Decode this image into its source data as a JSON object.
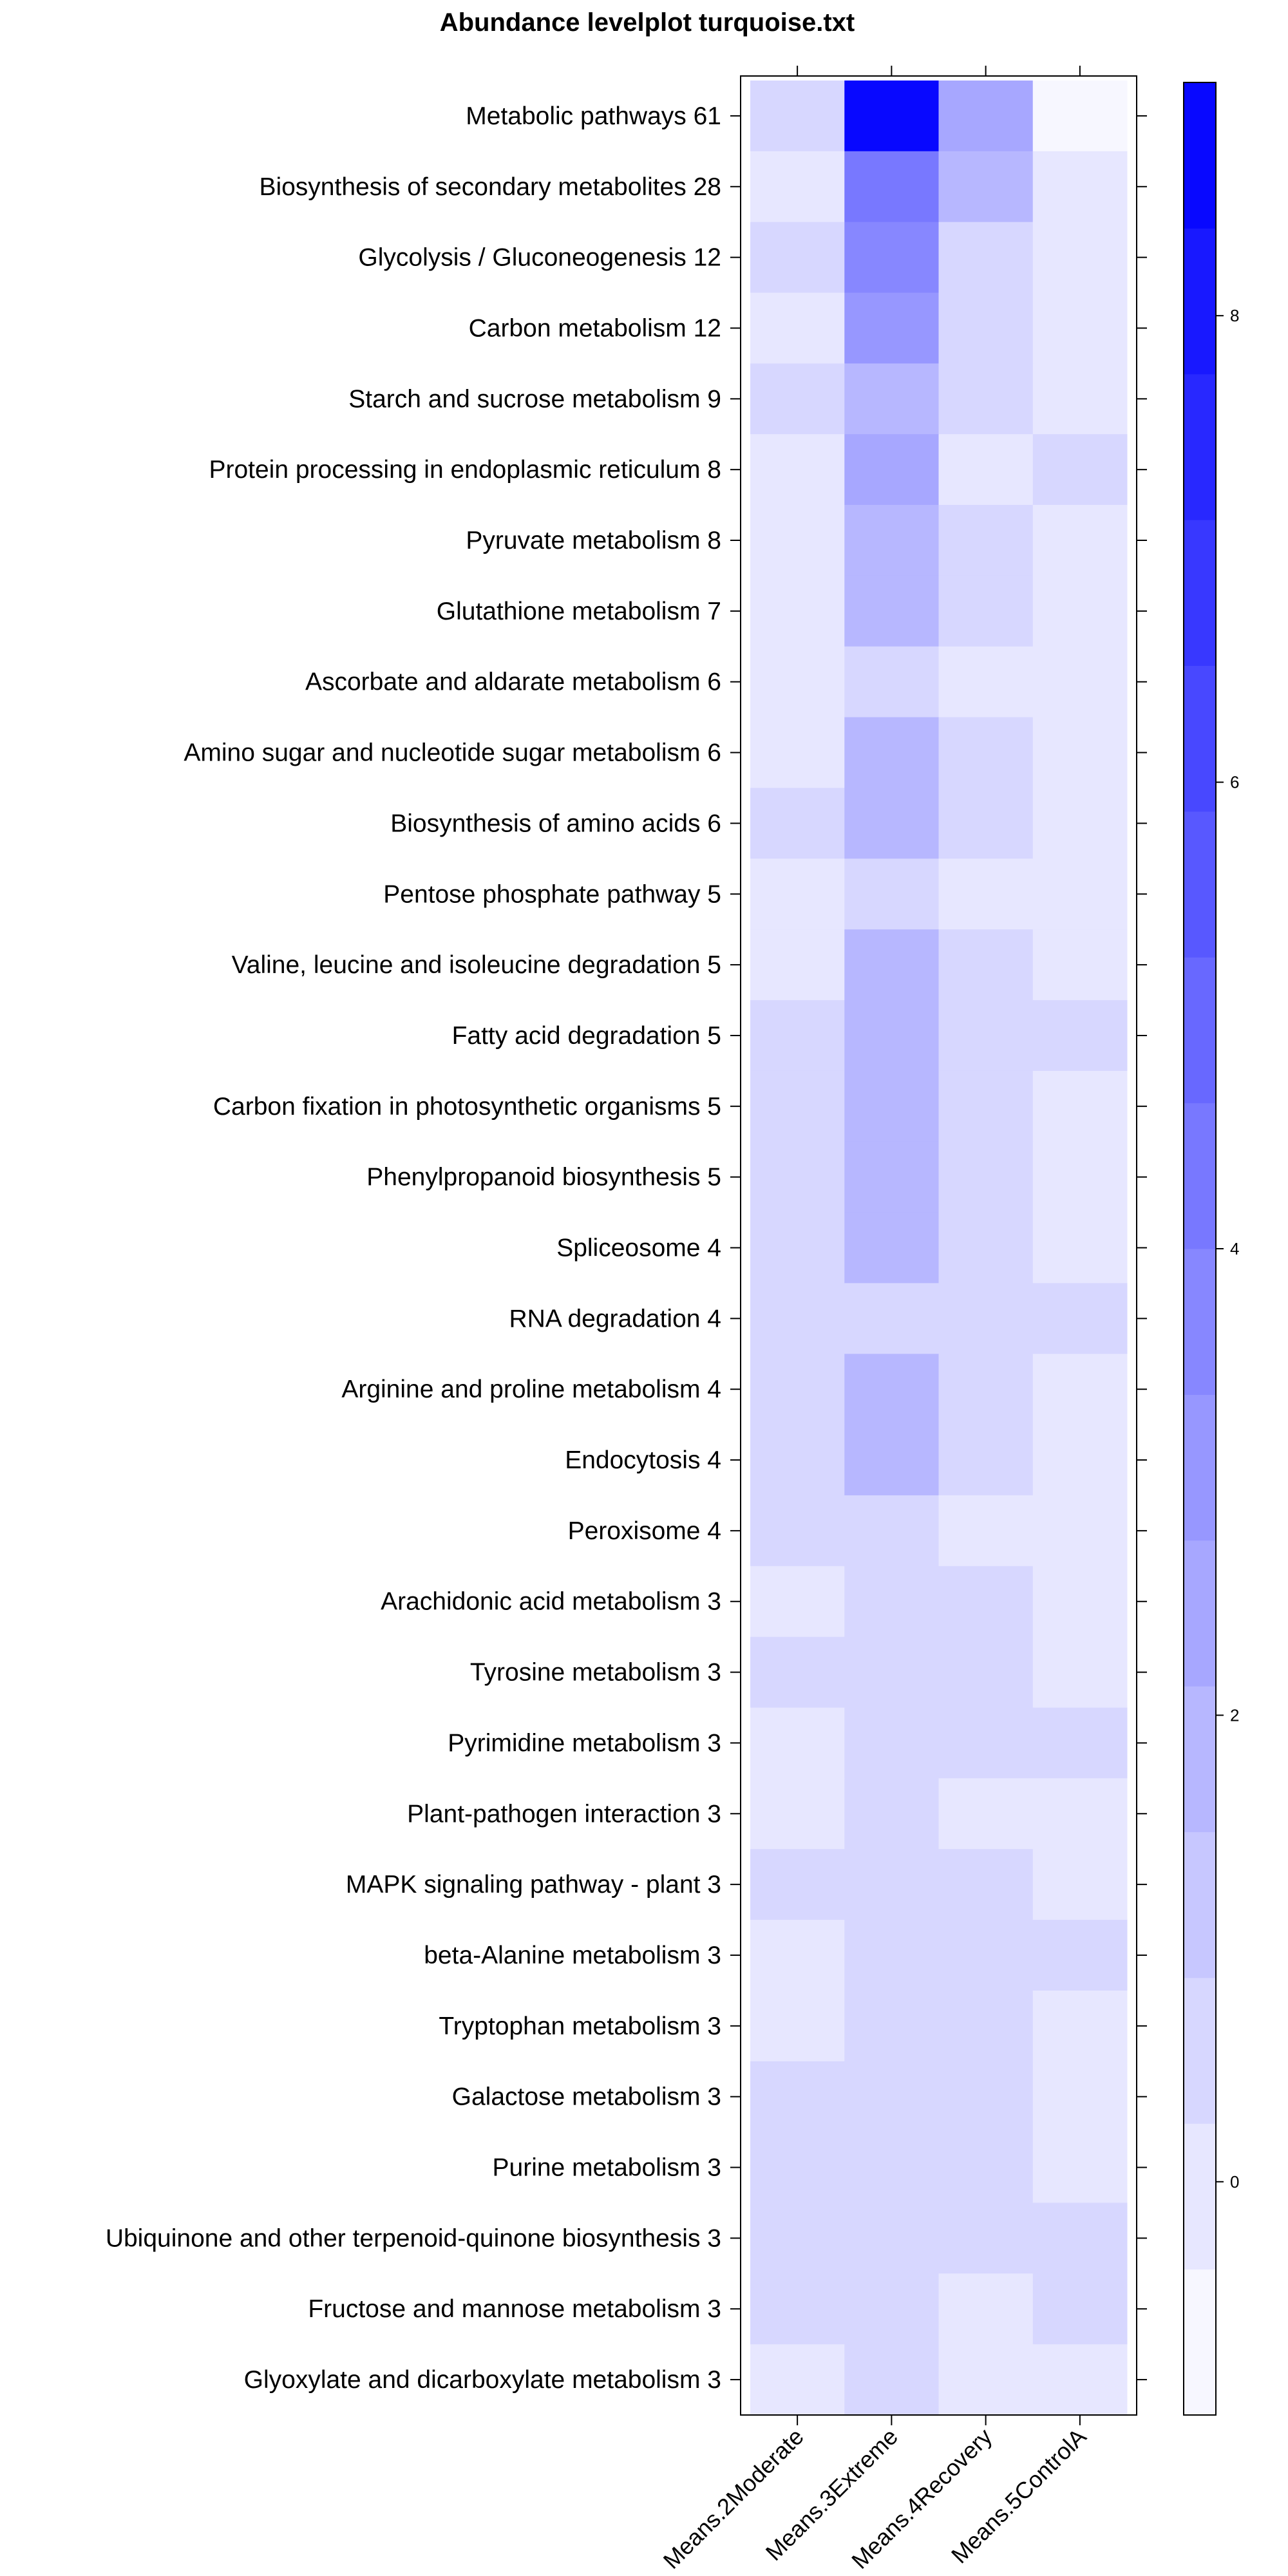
{
  "chart_data": {
    "type": "heatmap",
    "title": "Abundance levelplot turquoise.txt",
    "columns": [
      "Means.2Moderate",
      "Means.3Extreme",
      "Means.4Recovery",
      "Means.5ControlA"
    ],
    "rows": [
      "Metabolic pathways 61",
      "Biosynthesis of secondary metabolites 28",
      "Glycolysis / Gluconeogenesis 12",
      "Carbon metabolism 12",
      "Starch and sucrose metabolism 9",
      "Protein processing in endoplasmic reticulum 8",
      "Pyruvate metabolism 8",
      "Glutathione metabolism 7",
      "Ascorbate and aldarate metabolism 6",
      "Amino sugar and nucleotide sugar metabolism 6",
      "Biosynthesis of amino acids 6",
      "Pentose phosphate pathway 5",
      "Valine, leucine and isoleucine degradation 5",
      "Fatty acid degradation 5",
      "Carbon fixation in photosynthetic organisms 5",
      "Phenylpropanoid biosynthesis 5",
      "Spliceosome 4",
      "RNA degradation 4",
      "Arginine and proline metabolism 4",
      "Endocytosis 4",
      "Peroxisome 4",
      "Arachidonic acid metabolism 3",
      "Tyrosine metabolism 3",
      "Pyrimidine metabolism 3",
      "Plant-pathogen interaction 3",
      "MAPK signaling pathway - plant 3",
      "beta-Alanine metabolism 3",
      "Tryptophan metabolism 3",
      "Galactose metabolism 3",
      "Purine metabolism 3",
      "Ubiquinone and other terpenoid-quinone biosynthesis 3",
      "Fructose and mannose metabolism 3",
      "Glyoxylate and dicarboxylate metabolism 3"
    ],
    "values": [
      [
        0.6,
        9.0,
        2.2,
        -0.6
      ],
      [
        -0.1,
        4.6,
        1.6,
        -0.1
      ],
      [
        0.6,
        3.5,
        0.6,
        -0.1
      ],
      [
        -0.1,
        2.8,
        0.6,
        -0.1
      ],
      [
        0.6,
        1.6,
        0.6,
        -0.1
      ],
      [
        -0.1,
        2.2,
        -0.1,
        0.6
      ],
      [
        -0.1,
        1.6,
        0.6,
        -0.1
      ],
      [
        -0.1,
        1.6,
        0.6,
        -0.1
      ],
      [
        -0.1,
        0.6,
        -0.1,
        -0.1
      ],
      [
        -0.1,
        1.6,
        0.6,
        -0.1
      ],
      [
        0.6,
        1.6,
        0.6,
        -0.1
      ],
      [
        -0.1,
        0.6,
        -0.1,
        -0.1
      ],
      [
        -0.1,
        1.6,
        0.6,
        -0.1
      ],
      [
        0.6,
        1.6,
        0.6,
        0.6
      ],
      [
        0.6,
        1.6,
        0.6,
        -0.1
      ],
      [
        0.6,
        1.6,
        0.6,
        -0.1
      ],
      [
        0.6,
        1.6,
        0.6,
        -0.1
      ],
      [
        0.6,
        0.6,
        0.6,
        0.6
      ],
      [
        0.6,
        1.6,
        0.6,
        -0.1
      ],
      [
        0.6,
        1.6,
        0.6,
        -0.1
      ],
      [
        0.6,
        0.6,
        -0.1,
        -0.1
      ],
      [
        -0.1,
        0.6,
        0.6,
        -0.1
      ],
      [
        0.6,
        0.6,
        0.6,
        -0.1
      ],
      [
        -0.1,
        0.6,
        0.6,
        0.6
      ],
      [
        -0.1,
        0.6,
        -0.1,
        -0.1
      ],
      [
        0.6,
        0.6,
        0.6,
        -0.1
      ],
      [
        -0.1,
        0.6,
        0.6,
        0.6
      ],
      [
        -0.1,
        0.6,
        0.6,
        -0.1
      ],
      [
        0.6,
        0.6,
        0.6,
        -0.1
      ],
      [
        0.6,
        0.6,
        0.6,
        -0.1
      ],
      [
        0.6,
        0.6,
        0.6,
        0.6
      ],
      [
        0.6,
        0.6,
        -0.1,
        0.6
      ],
      [
        -0.1,
        0.6,
        -0.1,
        -0.1
      ]
    ],
    "colorkey": {
      "range": [
        -1.0,
        9.0
      ],
      "levels": 16,
      "ticks": [
        0,
        2,
        4,
        6,
        8
      ],
      "tick_labels": [
        "0",
        "2",
        "4",
        "6",
        "8"
      ],
      "low_color": "#ffffff",
      "high_color": "#0000ff"
    }
  }
}
